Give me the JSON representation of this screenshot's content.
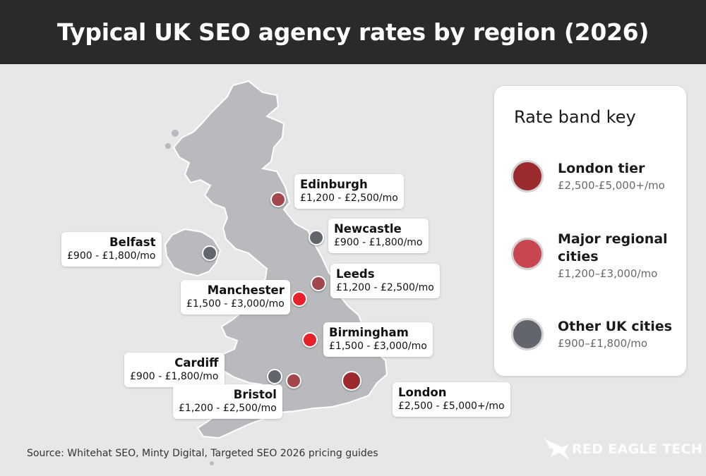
{
  "title": "Typical UK SEO agency rates by region (2026)",
  "map": {
    "cities": [
      {
        "key": "edinburgh",
        "name": "Edinburgh",
        "rate": "£1,200 - £2,500/mo",
        "band": "major",
        "lat": 55.95,
        "lon": -3.19
      },
      {
        "key": "newcastle",
        "name": "Newcastle",
        "rate": "£900 - £1,800/mo",
        "band": "other",
        "lat": 54.97,
        "lon": -1.61
      },
      {
        "key": "belfast",
        "name": "Belfast",
        "rate": "£900 - £1,800/mo",
        "band": "other",
        "lat": 54.6,
        "lon": -5.93
      },
      {
        "key": "leeds",
        "name": "Leeds",
        "rate": "£1,200 - £2,500/mo",
        "band": "major",
        "lat": 53.8,
        "lon": -1.55
      },
      {
        "key": "manchester",
        "name": "Manchester",
        "rate": "£1,500 - £3,000/mo",
        "band": "major",
        "lat": 53.48,
        "lon": -2.24
      },
      {
        "key": "birmingham",
        "name": "Birmingham",
        "rate": "£1,500 - £3,000/mo",
        "band": "major",
        "lat": 52.49,
        "lon": -1.89
      },
      {
        "key": "cardiff",
        "name": "Cardiff",
        "rate": "£900 - £1,800/mo",
        "band": "other",
        "lat": 51.48,
        "lon": -3.18
      },
      {
        "key": "bristol",
        "name": "Bristol",
        "rate": "£1,200 - £2,500/mo",
        "band": "major",
        "lat": 51.45,
        "lon": -2.59
      },
      {
        "key": "london",
        "name": "London",
        "rate": "£2,500 - £5,000+/mo",
        "band": "london",
        "lat": 51.51,
        "lon": -0.13
      }
    ]
  },
  "legend": {
    "title": "Rate band key",
    "items": [
      {
        "key": "london",
        "name": "London tier",
        "range": "£2,500-£5,000+/mo",
        "color": "#9b2a2d"
      },
      {
        "key": "major",
        "name": "Major regional cities",
        "range": "£1,200–£3,000/mo",
        "color": "#c8464f"
      },
      {
        "key": "other",
        "name": "Other UK cities",
        "range": "£900–£1,800/mo",
        "color": "#62656c"
      }
    ]
  },
  "pin_colors": {
    "london": "#9b2a2d",
    "major_alt": "#a3474f",
    "major_hot": "#e8202a",
    "other": "#62656c"
  },
  "map_colors": {
    "land": "#b9babd",
    "land_outline": "#ffffff"
  },
  "source": "Source: Whitehat SEO, Minty Digital, Targeted SEO 2026 pricing guides",
  "watermark": {
    "text": "RED EAGLE TECH",
    "icon": "eagle-logo-icon"
  }
}
